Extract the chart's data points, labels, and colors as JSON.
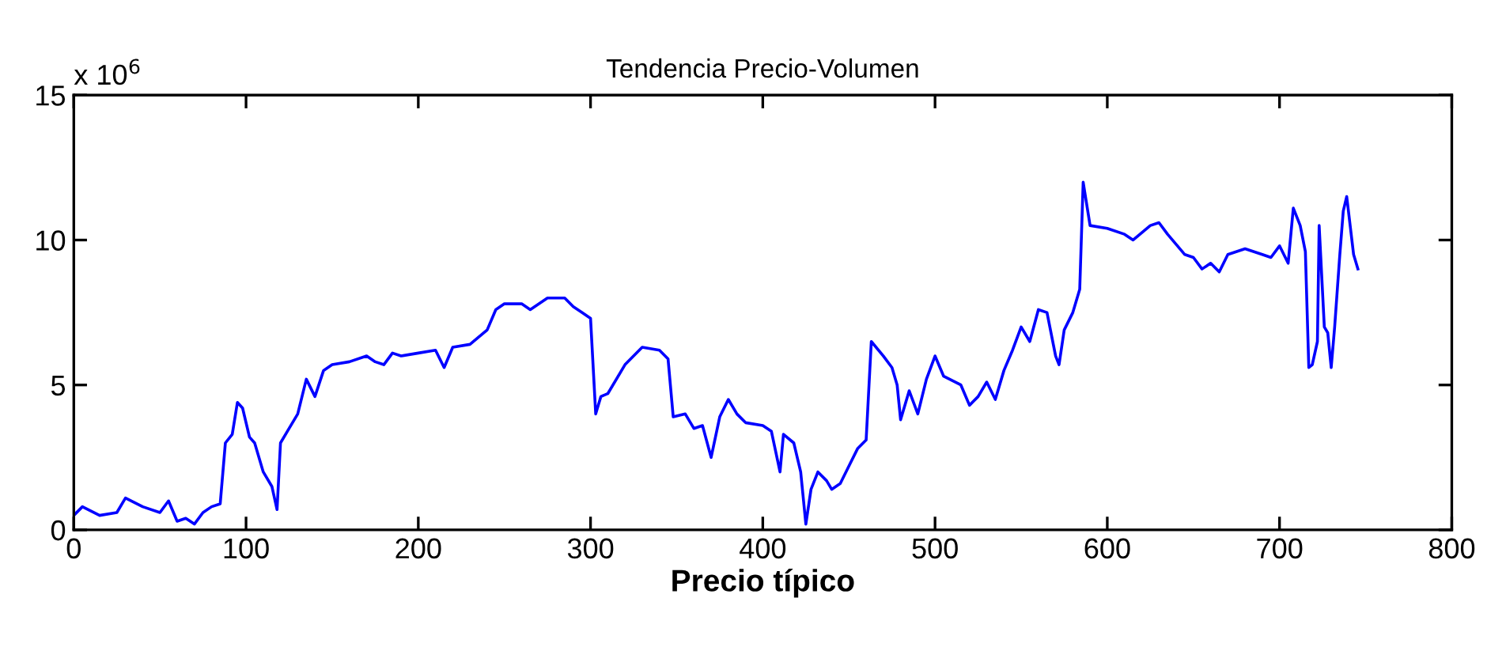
{
  "chart_data": {
    "type": "line",
    "title": "Tendencia Precio-Volumen",
    "xlabel": "Precio típico",
    "annotations": [
      "x 10$^{6}$"
    ],
    "series": [
      {
        "color": "#0000ff",
        "x": [
          0,
          5,
          15,
          25,
          30,
          40,
          50,
          55,
          60,
          65,
          70,
          75,
          80,
          85,
          88,
          92,
          95,
          98,
          102,
          105,
          110,
          115,
          118,
          120,
          125,
          130,
          135,
          140,
          145,
          150,
          160,
          170,
          175,
          180,
          185,
          190,
          200,
          210,
          215,
          220,
          230,
          240,
          245,
          250,
          260,
          265,
          275,
          285,
          290,
          295,
          300,
          303,
          306,
          310,
          320,
          330,
          340,
          345,
          348,
          355,
          360,
          365,
          370,
          375,
          380,
          385,
          390,
          400,
          405,
          410,
          412,
          418,
          422,
          425,
          428,
          432,
          437,
          440,
          445,
          450,
          455,
          460,
          463,
          470,
          475,
          478,
          480,
          485,
          490,
          495,
          500,
          505,
          515,
          520,
          525,
          530,
          535,
          540,
          545,
          550,
          555,
          560,
          565,
          570,
          572,
          575,
          580,
          584,
          586,
          590,
          600,
          610,
          615,
          625,
          630,
          635,
          645,
          650,
          655,
          660,
          665,
          670,
          680,
          690,
          695,
          700,
          705,
          708,
          712,
          715,
          717,
          719,
          722,
          723,
          726,
          728,
          730,
          732,
          735,
          737,
          739,
          741,
          743,
          745.5
        ],
        "values": [
          0.5,
          0.8,
          0.5,
          0.6,
          1.1,
          0.8,
          0.6,
          1.0,
          0.3,
          0.4,
          0.2,
          0.6,
          0.8,
          0.9,
          3.0,
          3.3,
          4.4,
          4.2,
          3.2,
          3.0,
          2.0,
          1.5,
          0.7,
          3.0,
          3.5,
          4.0,
          5.2,
          4.6,
          5.5,
          5.7,
          5.8,
          6.0,
          5.8,
          5.7,
          6.1,
          6.0,
          6.1,
          6.2,
          5.6,
          6.3,
          6.4,
          6.9,
          7.6,
          7.8,
          7.8,
          7.6,
          8.0,
          8.0,
          7.7,
          7.5,
          7.3,
          4.0,
          4.6,
          4.7,
          5.7,
          6.3,
          6.2,
          5.9,
          3.9,
          4.0,
          3.5,
          3.6,
          2.5,
          3.9,
          4.5,
          4.0,
          3.7,
          3.6,
          3.4,
          2.0,
          3.3,
          3.0,
          2.0,
          0.2,
          1.4,
          2.0,
          1.7,
          1.4,
          1.6,
          2.2,
          2.8,
          3.1,
          6.5,
          6.0,
          5.6,
          5.0,
          3.8,
          4.8,
          4.0,
          5.2,
          6.0,
          5.3,
          5.0,
          4.3,
          4.6,
          5.1,
          4.5,
          5.5,
          6.2,
          7.0,
          6.5,
          7.6,
          7.5,
          6.0,
          5.7,
          6.9,
          7.5,
          8.3,
          12.0,
          10.5,
          10.4,
          10.2,
          10.0,
          10.5,
          10.6,
          10.2,
          9.5,
          9.4,
          9.0,
          9.2,
          8.9,
          9.5,
          9.7,
          9.5,
          9.4,
          9.8,
          9.2,
          11.1,
          10.5,
          9.6,
          5.6,
          5.7,
          6.5,
          10.5,
          7.0,
          6.8,
          5.6,
          7.0,
          9.5,
          11.0,
          11.5,
          10.5,
          9.5,
          9.0
        ]
      }
    ],
    "xlim": [
      0,
      800
    ],
    "xticks": [
      0,
      100,
      200,
      300,
      400,
      500,
      600,
      700,
      800
    ],
    "ylim": [
      0,
      15
    ],
    "yticks": [
      0,
      5,
      10,
      15
    ],
    "grid": false,
    "legend": false,
    "marker": "none",
    "line_style": "solid"
  }
}
